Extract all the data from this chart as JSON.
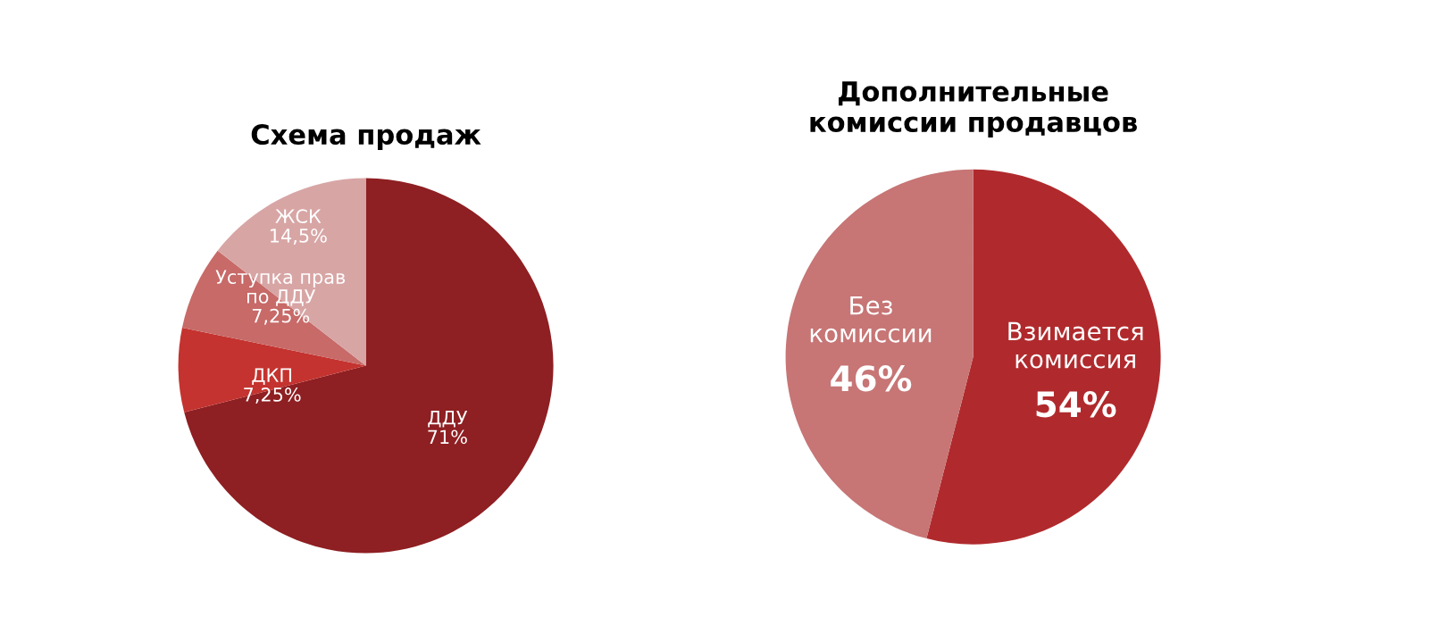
{
  "chart_data": [
    {
      "type": "pie",
      "title": "Схема продаж",
      "categories": [
        "ДДУ",
        "ДКП",
        "Уступка прав\nпо ДДУ",
        "ЖСК"
      ],
      "values": [
        71,
        7.25,
        7.25,
        14.5
      ],
      "value_labels": [
        "71%",
        "7,25%",
        "7,25%",
        "14,5%"
      ],
      "colors": [
        "#8e1f22",
        "#c4332f",
        "#c76a68",
        "#d8a5a5"
      ]
    },
    {
      "type": "pie",
      "title": "Дополнительные\nкомиссии продавцов",
      "categories": [
        "Взимается\nкомиссия",
        "Без\nкомиссии"
      ],
      "values": [
        54,
        46
      ],
      "value_labels": [
        "54%",
        "46%"
      ],
      "colors": [
        "#b02a2d",
        "#c77575"
      ]
    }
  ]
}
